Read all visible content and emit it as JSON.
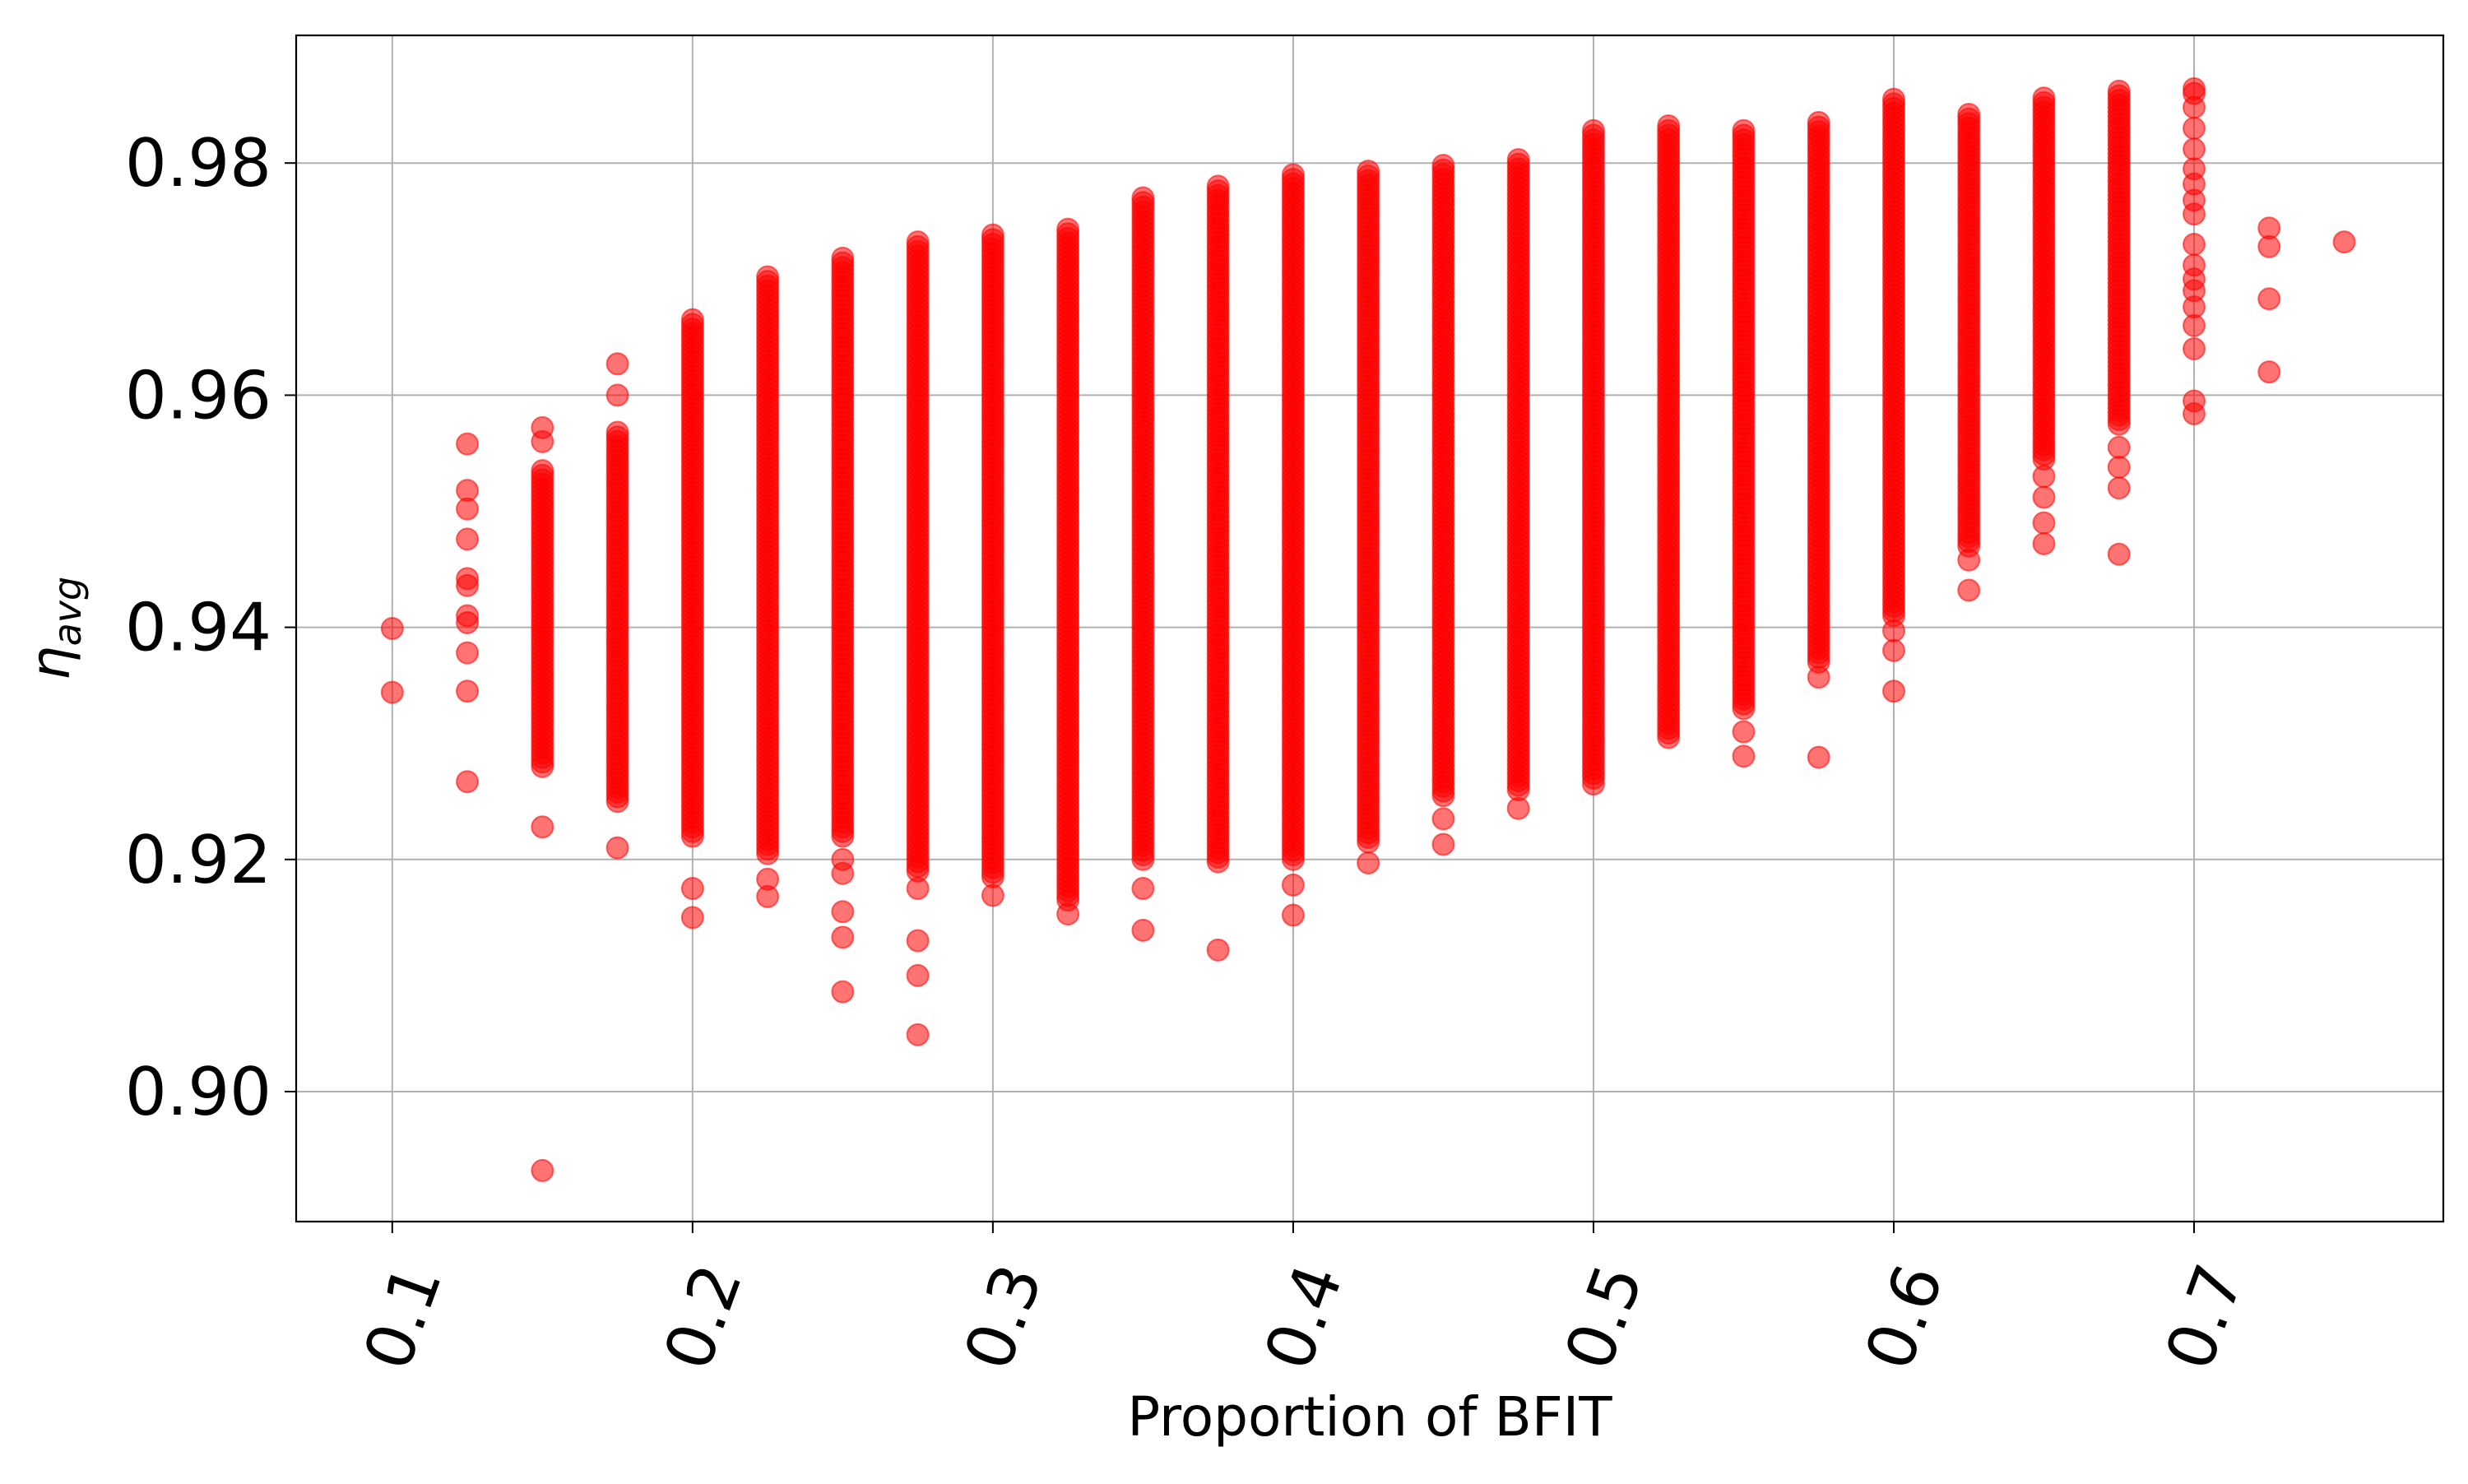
{
  "chart_data": {
    "type": "scatter",
    "title": "",
    "xlabel": "Proportion of BFIT",
    "ylabel_base": "η",
    "ylabel_sub": "avg",
    "xlim": [
      0.068,
      0.783
    ],
    "ylim": [
      0.8888,
      0.991
    ],
    "x_ticks": [
      0.1,
      0.2,
      0.3,
      0.4,
      0.5,
      0.6,
      0.7
    ],
    "x_tick_labels": [
      "0.1",
      "0.2",
      "0.3",
      "0.4",
      "0.5",
      "0.6",
      "0.7"
    ],
    "y_ticks": [
      0.9,
      0.92,
      0.94,
      0.96,
      0.98
    ],
    "y_tick_labels": [
      "0.90",
      "0.92",
      "0.94",
      "0.96",
      "0.98"
    ],
    "grid": true,
    "marker_color": "#ff0000",
    "marker_alpha": 0.55,
    "columns": [
      {
        "x": 0.1,
        "dense_range": null,
        "outliers": [
          0.9399,
          0.9344
        ]
      },
      {
        "x": 0.125,
        "dense_range": null,
        "outliers": [
          0.9558,
          0.9518,
          0.9502,
          0.9476,
          0.9442,
          0.9436,
          0.941,
          0.9404,
          0.9378,
          0.9345,
          0.9267
        ]
      },
      {
        "x": 0.15,
        "dense_range": [
          0.928,
          0.9535
        ],
        "outliers": [
          0.9572,
          0.956,
          0.9228,
          0.8932
        ]
      },
      {
        "x": 0.175,
        "dense_range": [
          0.925,
          0.9568
        ],
        "outliers": [
          0.9627,
          0.96,
          0.921
        ]
      },
      {
        "x": 0.2,
        "dense_range": [
          0.922,
          0.9665
        ],
        "outliers": [
          0.9175,
          0.915
        ]
      },
      {
        "x": 0.225,
        "dense_range": [
          0.9205,
          0.9702
        ],
        "outliers": [
          0.9183,
          0.9168
        ]
      },
      {
        "x": 0.25,
        "dense_range": [
          0.922,
          0.9718
        ],
        "outliers": [
          0.92,
          0.9188,
          0.9155,
          0.9133,
          0.9086
        ]
      },
      {
        "x": 0.275,
        "dense_range": [
          0.919,
          0.9732
        ],
        "outliers": [
          0.9175,
          0.913,
          0.91,
          0.9049
        ]
      },
      {
        "x": 0.3,
        "dense_range": [
          0.9185,
          0.9738
        ],
        "outliers": [
          0.9169
        ]
      },
      {
        "x": 0.325,
        "dense_range": [
          0.9165,
          0.9743
        ],
        "outliers": [
          0.9153
        ]
      },
      {
        "x": 0.35,
        "dense_range": [
          0.92,
          0.977
        ],
        "outliers": [
          0.9175,
          0.9139
        ]
      },
      {
        "x": 0.375,
        "dense_range": [
          0.9198,
          0.978
        ],
        "outliers": [
          0.9122
        ]
      },
      {
        "x": 0.4,
        "dense_range": [
          0.92,
          0.979
        ],
        "outliers": [
          0.9178,
          0.9152
        ]
      },
      {
        "x": 0.425,
        "dense_range": [
          0.9215,
          0.9793
        ],
        "outliers": [
          0.9197
        ]
      },
      {
        "x": 0.45,
        "dense_range": [
          0.9255,
          0.9798
        ],
        "outliers": [
          0.9235,
          0.9213
        ]
      },
      {
        "x": 0.475,
        "dense_range": [
          0.926,
          0.9803
        ],
        "outliers": [
          0.9244
        ]
      },
      {
        "x": 0.5,
        "dense_range": [
          0.927,
          0.9828
        ],
        "outliers": [
          0.9265
        ]
      },
      {
        "x": 0.525,
        "dense_range": [
          0.9305,
          0.9832
        ],
        "outliers": []
      },
      {
        "x": 0.55,
        "dense_range": [
          0.933,
          0.9828
        ],
        "outliers": [
          0.931,
          0.9289
        ]
      },
      {
        "x": 0.575,
        "dense_range": [
          0.937,
          0.9835
        ],
        "outliers": [
          0.9357,
          0.9288
        ]
      },
      {
        "x": 0.6,
        "dense_range": [
          0.941,
          0.9855
        ],
        "outliers": [
          0.9397,
          0.938,
          0.9345
        ]
      },
      {
        "x": 0.625,
        "dense_range": [
          0.947,
          0.9842
        ],
        "outliers": [
          0.9458,
          0.9432
        ]
      },
      {
        "x": 0.65,
        "dense_range": [
          0.9545,
          0.9856
        ],
        "outliers": [
          0.953,
          0.9512,
          0.949,
          0.9472
        ]
      },
      {
        "x": 0.675,
        "dense_range": [
          0.9575,
          0.9862
        ],
        "outliers": [
          0.9555,
          0.9538,
          0.952,
          0.9463
        ]
      },
      {
        "x": 0.7,
        "dense_range": null,
        "outliers": [
          0.9864,
          0.986,
          0.9848,
          0.983,
          0.9812,
          0.9795,
          0.9782,
          0.9768,
          0.9756,
          0.973,
          0.9712,
          0.97,
          0.969,
          0.9676,
          0.966,
          0.964,
          0.9595,
          0.9584
        ]
      },
      {
        "x": 0.725,
        "dense_range": null,
        "outliers": [
          0.9744,
          0.9728,
          0.9683,
          0.962
        ]
      },
      {
        "x": 0.75,
        "dense_range": null,
        "outliers": [
          0.9732
        ]
      }
    ]
  }
}
